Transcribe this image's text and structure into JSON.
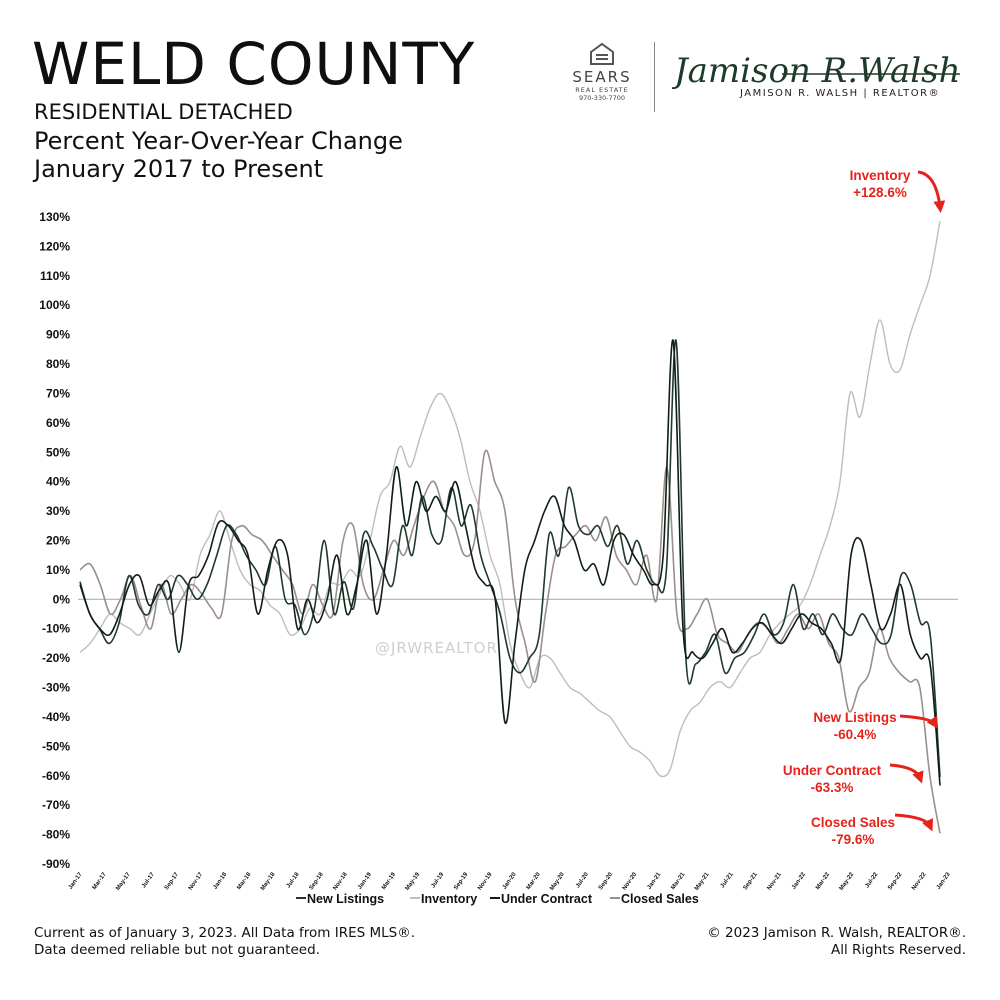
{
  "header": {
    "title": "WELD COUNTY",
    "subtitle1": "RESIDENTIAL DETACHED",
    "subtitle2": "Percent Year-Over-Year Change",
    "subtitle3": "January 2017 to Present"
  },
  "logos": {
    "sears_name": "SEARS",
    "sears_sub": "REAL ESTATE",
    "sears_phone": "970-330-7700",
    "signature_script": "Jamison R.Walsh",
    "signature_text": "JAMISON R. WALSH | REALTOR®"
  },
  "watermark": "@JRWREALTOR",
  "footer": {
    "left_line1": "Current as of January 3, 2023. All Data from IRES MLS®.",
    "left_line2": "Data deemed reliable but not guaranteed.",
    "right_line1": "© 2023 Jamison R. Walsh, REALTOR®.",
    "right_line2": "All Rights Reserved."
  },
  "colors": {
    "new_listings": "#1f3a2b",
    "inventory": "#bdbdbd",
    "under_contract": "#0f1f17",
    "closed_sales": "#9a8f8b",
    "annotation": "#e5231b",
    "zero_line": "#b0b0b0"
  },
  "chart_data": {
    "type": "line",
    "ylim": [
      -90,
      130
    ],
    "yticks": [
      -90,
      -80,
      -70,
      -60,
      -50,
      -40,
      -30,
      -20,
      -10,
      0,
      10,
      20,
      30,
      40,
      50,
      60,
      70,
      80,
      90,
      100,
      110,
      120,
      130
    ],
    "x_tick_labels": [
      "Jan-17",
      "Mar-17",
      "May-17",
      "Jul-17",
      "Sep-17",
      "Nov-17",
      "Jan-18",
      "Mar-18",
      "May-18",
      "Jul-18",
      "Sep-18",
      "Nov-18",
      "Jan-19",
      "Mar-19",
      "May-19",
      "Jul-19",
      "Sep-19",
      "Nov-19",
      "Jan-20",
      "Mar-20",
      "May-20",
      "Jul-20",
      "Sep-20",
      "Nov-20",
      "Jan-21",
      "Mar-21",
      "May-21",
      "Jul-21",
      "Sep-21",
      "Nov-21",
      "Jan-22",
      "Mar-22",
      "May-22",
      "Jul-22",
      "Sep-22",
      "Nov-22",
      "Jan-23"
    ],
    "series": [
      {
        "name": "New Listings",
        "values": [
          6,
          -5,
          -10,
          -15,
          -8,
          8,
          -2,
          -5,
          5,
          0,
          8,
          5,
          0,
          5,
          15,
          25,
          22,
          15,
          10,
          5,
          18,
          0,
          -2,
          -12,
          -3,
          20,
          -5,
          6,
          -3,
          22,
          18,
          10,
          5,
          25,
          15,
          35,
          22,
          20,
          38,
          25,
          32,
          15,
          5,
          -5,
          -20,
          -25,
          -20,
          -12,
          22,
          15,
          38,
          25,
          22,
          25,
          18,
          25,
          12,
          20,
          10,
          5,
          10,
          88,
          -20,
          -22,
          -18,
          -12,
          -25,
          -20,
          -18,
          -12,
          -5,
          -12,
          -8,
          5,
          -10,
          -5,
          -12,
          -5,
          -10,
          -12,
          -5,
          -10,
          -15,
          -12,
          8,
          5,
          -8,
          -12,
          -60.4
        ],
        "annotation": {
          "label": "New Listings",
          "value": "-60.4%"
        }
      },
      {
        "name": "Inventory",
        "values": [
          -18,
          -15,
          -10,
          -5,
          -8,
          -10,
          -12,
          -5,
          2,
          8,
          5,
          0,
          15,
          22,
          30,
          20,
          10,
          5,
          3,
          -2,
          -5,
          -12,
          -10,
          -3,
          -5,
          5,
          5,
          10,
          8,
          20,
          35,
          40,
          52,
          45,
          55,
          65,
          70,
          65,
          55,
          40,
          30,
          15,
          5,
          -15,
          -25,
          -30,
          -20,
          -20,
          -25,
          -30,
          -32,
          -35,
          -38,
          -40,
          -45,
          -50,
          -52,
          -55,
          -60,
          -58,
          -45,
          -38,
          -35,
          -30,
          -28,
          -30,
          -25,
          -20,
          -18,
          -12,
          -8,
          -5,
          -2,
          5,
          15,
          25,
          40,
          70,
          62,
          80,
          95,
          80,
          78,
          90,
          100,
          110,
          128.6
        ],
        "annotation": {
          "label": "Inventory",
          "value": "+128.6%"
        }
      },
      {
        "name": "Under Contract",
        "values": [
          5,
          -5,
          -10,
          -12,
          -5,
          5,
          8,
          -2,
          3,
          5,
          -18,
          5,
          8,
          15,
          26,
          25,
          20,
          15,
          -5,
          10,
          20,
          15,
          -10,
          0,
          -8,
          0,
          15,
          -5,
          5,
          20,
          -5,
          15,
          45,
          25,
          40,
          30,
          35,
          30,
          40,
          25,
          10,
          5,
          0,
          -42,
          -15,
          10,
          20,
          30,
          35,
          25,
          20,
          10,
          12,
          5,
          20,
          22,
          15,
          10,
          5,
          15,
          88,
          -10,
          -18,
          -20,
          -15,
          -10,
          -18,
          -15,
          -10,
          -8,
          -12,
          -15,
          -10,
          -5,
          -8,
          -10,
          -15,
          -20,
          15,
          20,
          5,
          -10,
          -5,
          5,
          -12,
          -20,
          -22,
          -63.3
        ],
        "annotation": {
          "label": "Under Contract",
          "value": "-63.3%"
        }
      },
      {
        "name": "Closed Sales",
        "values": [
          10,
          12,
          5,
          -5,
          0,
          8,
          -2,
          -10,
          5,
          -5,
          0,
          5,
          2,
          -3,
          -5,
          20,
          25,
          22,
          20,
          15,
          10,
          5,
          -5,
          5,
          -2,
          -5,
          20,
          25,
          5,
          0,
          10,
          20,
          15,
          25,
          35,
          40,
          30,
          25,
          15,
          20,
          50,
          40,
          30,
          0,
          -15,
          -28,
          -5,
          15,
          18,
          22,
          25,
          20,
          28,
          15,
          10,
          5,
          15,
          0,
          45,
          -5,
          -10,
          -5,
          0,
          -12,
          -15,
          -18,
          -12,
          -8,
          -10,
          -15,
          -10,
          -5,
          -10,
          -5,
          -15,
          -20,
          -38,
          -30,
          -25,
          -10,
          -20,
          -25,
          -28,
          -30,
          -60,
          -79.6
        ],
        "annotation": {
          "label": "Closed Sales",
          "value": "-79.6%"
        }
      }
    ],
    "legend": {
      "position": "bottom",
      "entries": [
        "New Listings",
        "Inventory",
        "Under Contract",
        "Closed Sales"
      ]
    }
  }
}
